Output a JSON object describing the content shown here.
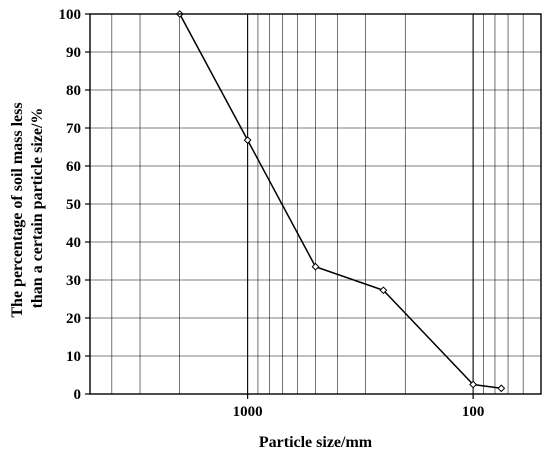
{
  "chart_data": {
    "type": "line",
    "title": "",
    "xlabel": "Particle size/mm",
    "ylabel_lines": [
      "The percentage of soil mass less",
      "than a certain particle size/%"
    ],
    "x_scale": "log",
    "x_reversed": true,
    "xlim": [
      5000,
      50
    ],
    "ylim": [
      0,
      100
    ],
    "x_tick_labels": [
      {
        "value": 1000,
        "label": "1000"
      },
      {
        "value": 100,
        "label": "100"
      }
    ],
    "y_ticks": [
      0,
      10,
      20,
      30,
      40,
      50,
      60,
      70,
      80,
      90,
      100
    ],
    "grid": true,
    "series": [
      {
        "x": [
          2000,
          1000,
          500,
          250,
          100,
          75
        ],
        "y": [
          100,
          66.8,
          33.5,
          27.3,
          2.5,
          1.5
        ],
        "marker": "diamond-open",
        "color": "#000000"
      }
    ]
  }
}
